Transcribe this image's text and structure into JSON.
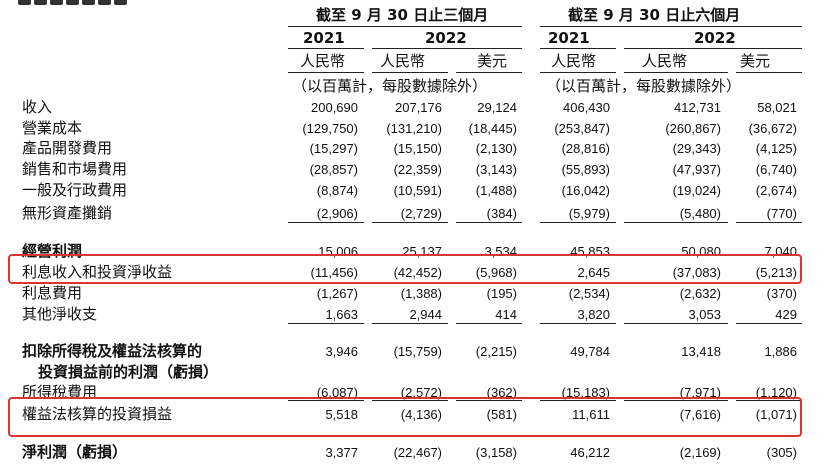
{
  "header": {
    "period_3m": "截至 9 月 30 日止三個月",
    "period_6m": "截至 9 月 30 日止六個月",
    "years": [
      "2021",
      "2022",
      "2021",
      "2022"
    ],
    "currencies": [
      "人民幣",
      "人民幣",
      "美元",
      "人民幣",
      "人民幣",
      "美元"
    ],
    "unit_note_3m": "（以百萬計，每股數據除外）",
    "unit_note_6m": "（以百萬計，每股數據除外）"
  },
  "rows": [
    {
      "label": "收入",
      "values": [
        "200,690",
        "207,176",
        "29,124",
        "406,430",
        "412,731",
        "58,021"
      ]
    },
    {
      "label": "營業成本",
      "values": [
        "(129,750)",
        "(131,210)",
        "(18,445)",
        "(253,847)",
        "(260,867)",
        "(36,672)"
      ]
    },
    {
      "label": "產品開發費用",
      "values": [
        "(15,297)",
        "(15,150)",
        "(2,130)",
        "(28,816)",
        "(29,343)",
        "(4,125)"
      ]
    },
    {
      "label": "銷售和市場費用",
      "values": [
        "(28,857)",
        "(22,359)",
        "(3,143)",
        "(55,893)",
        "(47,937)",
        "(6,740)"
      ]
    },
    {
      "label": "一般及行政費用",
      "values": [
        "(8,874)",
        "(10,591)",
        "(1,488)",
        "(16,042)",
        "(19,024)",
        "(2,674)"
      ]
    },
    {
      "label": "無形資產攤銷",
      "values": [
        "(2,906)",
        "(2,729)",
        "(384)",
        "(5,979)",
        "(5,480)",
        "(770)"
      ]
    },
    {
      "label": "經營利潤",
      "values": [
        "15,006",
        "25,137",
        "3,534",
        "45,853",
        "50,080",
        "7,040"
      ]
    },
    {
      "label": "利息收入和投資淨收益",
      "values": [
        "(11,456)",
        "(42,452)",
        "(5,968)",
        "2,645",
        "(37,083)",
        "(5,213)"
      ]
    },
    {
      "label": "利息費用",
      "values": [
        "(1,267)",
        "(1,388)",
        "(195)",
        "(2,534)",
        "(2,632)",
        "(370)"
      ]
    },
    {
      "label": "其他淨收支",
      "values": [
        "1,663",
        "2,944",
        "414",
        "3,820",
        "3,053",
        "429"
      ]
    },
    {
      "label": "扣除所得稅及權益法核算的",
      "label2": "投資損益前的利潤（虧損）",
      "values": [
        "3,946",
        "(15,759)",
        "(2,215)",
        "49,784",
        "13,418",
        "1,886"
      ]
    },
    {
      "label": "所得稅費用",
      "values": [
        "(6,087)",
        "(2,572)",
        "(362)",
        "(15,183)",
        "(7,971)",
        "(1,120)"
      ]
    },
    {
      "label": "權益法核算的投資損益",
      "values": [
        "5,518",
        "(4,136)",
        "(581)",
        "11,611",
        "(7,616)",
        "(1,071)"
      ]
    },
    {
      "label": "淨利潤（虧損）",
      "values": [
        "3,377",
        "(22,467)",
        "(3,158)",
        "46,212",
        "(2,169)",
        "(305)"
      ]
    }
  ]
}
